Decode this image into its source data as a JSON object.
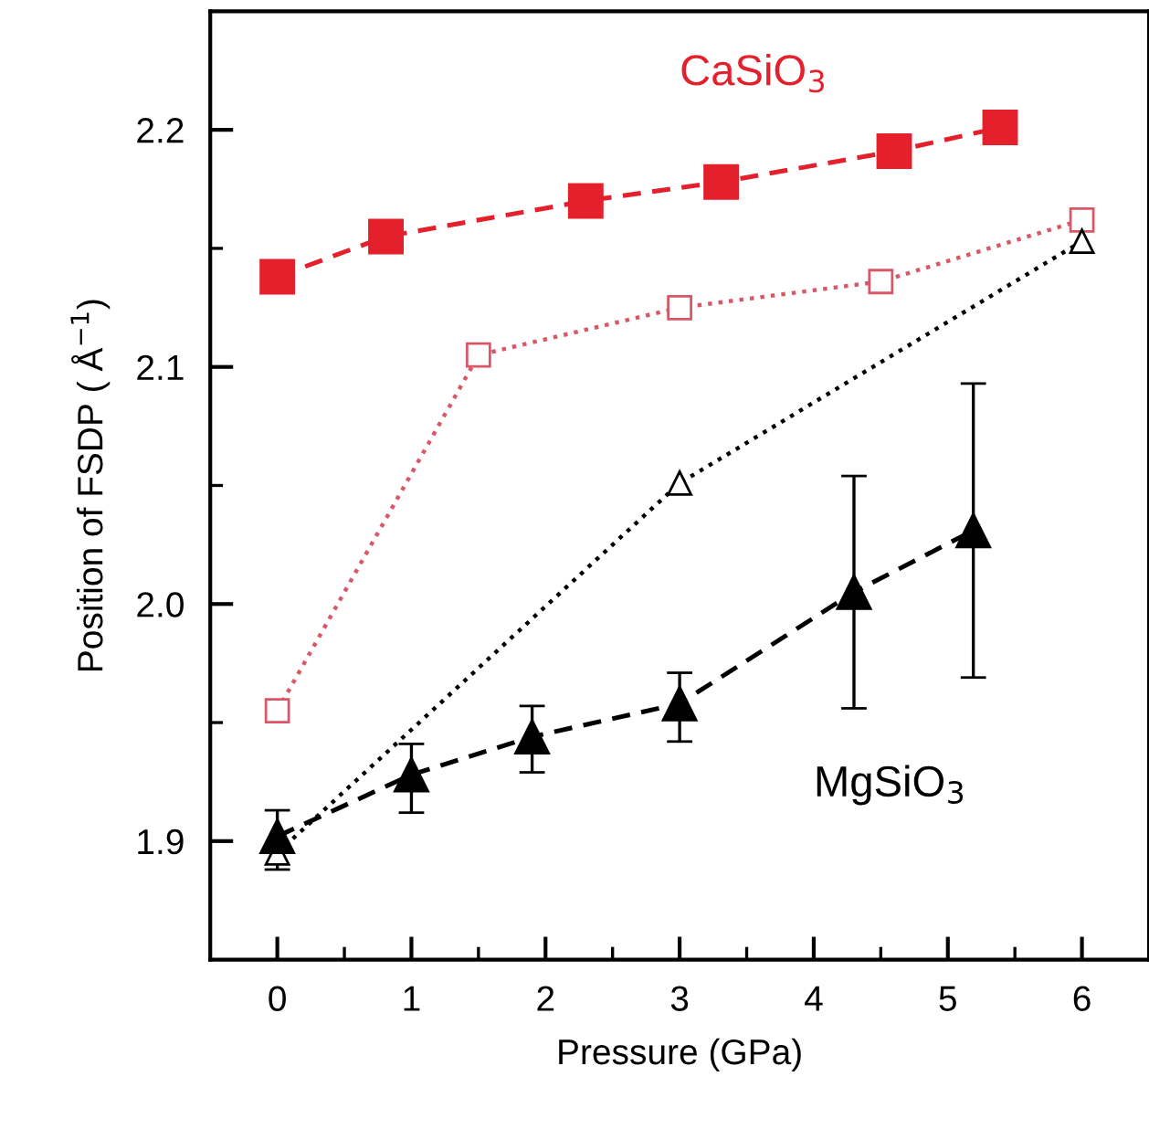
{
  "chart_data": {
    "type": "line",
    "xlabel": "Pressure (GPa)",
    "ylabel": "Position of FSDP ( Å$^{−1}$)",
    "xlim": [
      -0.5,
      6.5
    ],
    "ylim": [
      1.85,
      2.25
    ],
    "xticks": [
      0,
      {
        "value": 0.5,
        "label": null
      },
      1,
      {
        "value": 1.5,
        "label": null
      },
      2,
      {
        "value": 2.5,
        "label": null
      },
      3,
      {
        "value": 3.5,
        "label": null
      },
      4,
      {
        "value": 4.5,
        "label": null
      },
      5,
      {
        "value": 5.5,
        "label": null
      },
      6
    ],
    "yticks": [
      {
        "value": 1.9,
        "label": "1.9"
      },
      {
        "value": 1.95,
        "label": null
      },
      {
        "value": 2.0,
        "label": "2.0"
      },
      {
        "value": 2.05,
        "label": null
      },
      {
        "value": 2.1,
        "label": "2.1"
      },
      {
        "value": 2.15,
        "label": null
      },
      {
        "value": 2.2,
        "label": "2.2"
      }
    ],
    "grid": false,
    "legend": false,
    "series": [
      {
        "color": "#e3202b",
        "marker": "square",
        "line_style": "dashed",
        "x": [
          0,
          0.81,
          2.3,
          3.31,
          4.6,
          5.39
        ],
        "values": [
          2.138,
          2.155,
          2.17,
          2.178,
          2.191,
          2.201
        ]
      },
      {
        "color": "#d95868",
        "marker": "square",
        "line_style": "dotted",
        "x": [
          0,
          1.5,
          3,
          4.5,
          6
        ],
        "values": [
          1.955,
          2.105,
          2.125,
          2.136,
          2.162
        ]
      },
      {
        "color": "#000000",
        "marker": "triangle",
        "line_style": "dotted",
        "x": [
          0,
          3,
          6
        ],
        "values": [
          1.895,
          2.051,
          2.153
        ]
      },
      {
        "color": "#000000",
        "marker": "triangle",
        "line_style": "dashed",
        "x": [
          0,
          1,
          1.9,
          3,
          4.3,
          5.19
        ],
        "values": [
          1.902,
          1.928,
          1.944,
          1.958,
          2.005,
          2.031
        ],
        "errors": [
          [
            1.888,
            1.913
          ],
          [
            1.912,
            1.941
          ],
          [
            1.929,
            1.957
          ],
          [
            1.942,
            1.971
          ],
          [
            1.956,
            2.054
          ],
          [
            1.969,
            2.093
          ]
        ]
      }
    ],
    "annotations": [
      "CaSiO$_{3}$",
      "MgSiO$_{3}$"
    ]
  }
}
